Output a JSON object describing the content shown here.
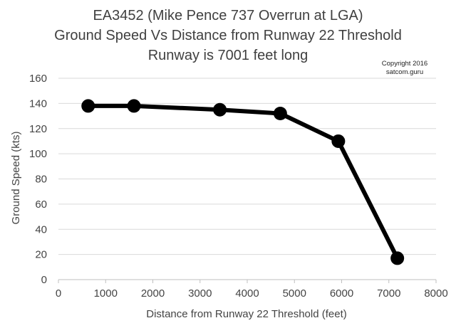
{
  "chart_data": {
    "type": "line",
    "title_lines": [
      "EA3452 (Mike Pence 737 Overrun at LGA)",
      "Ground Speed Vs Distance from Runway 22 Threshold",
      "Runway is 7001 feet long"
    ],
    "copyright_lines": [
      "Copyright 2016",
      "satcom.guru"
    ],
    "xlabel": "Distance from Runway 22 Threshold (feet)",
    "ylabel": "Ground Speed (kts)",
    "xlim": [
      0,
      8000
    ],
    "ylim": [
      0,
      160
    ],
    "x_ticks": [
      0,
      1000,
      2000,
      3000,
      4000,
      5000,
      6000,
      7000,
      8000
    ],
    "y_ticks": [
      0,
      20,
      40,
      60,
      80,
      100,
      120,
      140,
      160
    ],
    "grid": "horizontal",
    "legend": "none",
    "series": [
      {
        "name": "Ground Speed",
        "color": "#000000",
        "x": [
          630,
          1600,
          3420,
          4700,
          5930,
          7180
        ],
        "y": [
          138,
          138,
          135,
          132,
          110,
          17
        ]
      }
    ]
  }
}
